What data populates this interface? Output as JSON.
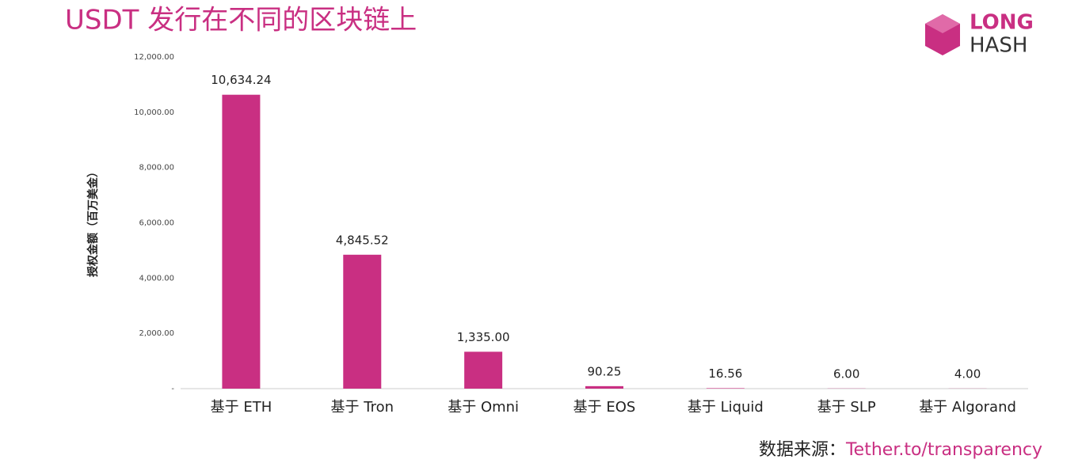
{
  "chart_data": {
    "type": "bar",
    "title": "USDT 发行在不同的区块链上",
    "y_label": "授权金额（百万美金）",
    "categories": [
      "基于 ETH",
      "基于 Tron",
      "基于 Omni",
      "基于 EOS",
      "基于 Liquid",
      "基于 SLP",
      "基于 Algorand"
    ],
    "values": [
      10634.24,
      4845.52,
      1335.0,
      90.25,
      16.56,
      6.0,
      4.0
    ],
    "value_labels": [
      "10,634.24",
      "4,845.52",
      "1,335.00",
      "90.25",
      "16.56",
      "6.00",
      "4.00"
    ],
    "color": "#c92f82",
    "ylim": [
      0,
      12000
    ],
    "yticks": [
      {
        "value": 0,
        "label": "-"
      },
      {
        "value": 2000,
        "label": "2,000.00"
      },
      {
        "value": 4000,
        "label": "4,000.00"
      },
      {
        "value": 6000,
        "label": "6,000.00"
      },
      {
        "value": 8000,
        "label": "8,000.00"
      },
      {
        "value": 10000,
        "label": "10,000.00"
      },
      {
        "value": 12000,
        "label": "12,000.00"
      }
    ],
    "grid": false,
    "source_label": "数据来源：",
    "source_link": "Tether.to/transparency",
    "logo": [
      "LONG",
      "HASH"
    ]
  }
}
